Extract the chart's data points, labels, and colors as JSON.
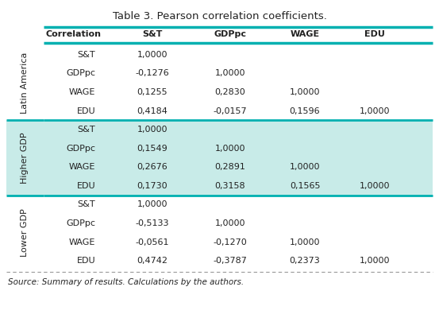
{
  "title": "Table 3. Pearson correlation coefficients.",
  "source": "Source: Summary of results. Calculations by the authors.",
  "header": [
    "Correlation",
    "S&T",
    "GDPpc",
    "WAGE",
    "EDU"
  ],
  "groups": [
    {
      "label": "Latin America",
      "bg_color": "#ffffff",
      "rows": [
        [
          "S&T",
          "1,0000",
          "",
          "",
          ""
        ],
        [
          "GDPpc",
          "-0,1276",
          "1,0000",
          "",
          ""
        ],
        [
          "WAGE",
          "0,1255",
          "0,2830",
          "1,0000",
          ""
        ],
        [
          "EDU",
          "0,4184",
          "-0,0157",
          "0,1596",
          "1,0000"
        ]
      ]
    },
    {
      "label": "Higher GDP",
      "bg_color": "#c8ebe8",
      "rows": [
        [
          "S&T",
          "1,0000",
          "",
          "",
          ""
        ],
        [
          "GDPpc",
          "0,1549",
          "1,0000",
          "",
          ""
        ],
        [
          "WAGE",
          "0,2676",
          "0,2891",
          "1,0000",
          ""
        ],
        [
          "EDU",
          "0,1730",
          "0,3158",
          "0,1565",
          "1,0000"
        ]
      ]
    },
    {
      "label": "Lower GDP",
      "bg_color": "#ffffff",
      "rows": [
        [
          "S&T",
          "1,0000",
          "",
          "",
          ""
        ],
        [
          "GDPpc",
          "-0,5133",
          "1,0000",
          "",
          ""
        ],
        [
          "WAGE",
          "-0,0561",
          "-0,1270",
          "1,0000",
          ""
        ],
        [
          "EDU",
          "0,4742",
          "-0,3787",
          "0,2373",
          "1,0000"
        ]
      ]
    }
  ],
  "header_line_color": "#00b0b0",
  "divider_color": "#00b0b0",
  "text_color": "#222222",
  "title_fontsize": 9.5,
  "body_fontsize": 8.0,
  "source_fontsize": 7.5,
  "group_label_fontsize": 8.0
}
